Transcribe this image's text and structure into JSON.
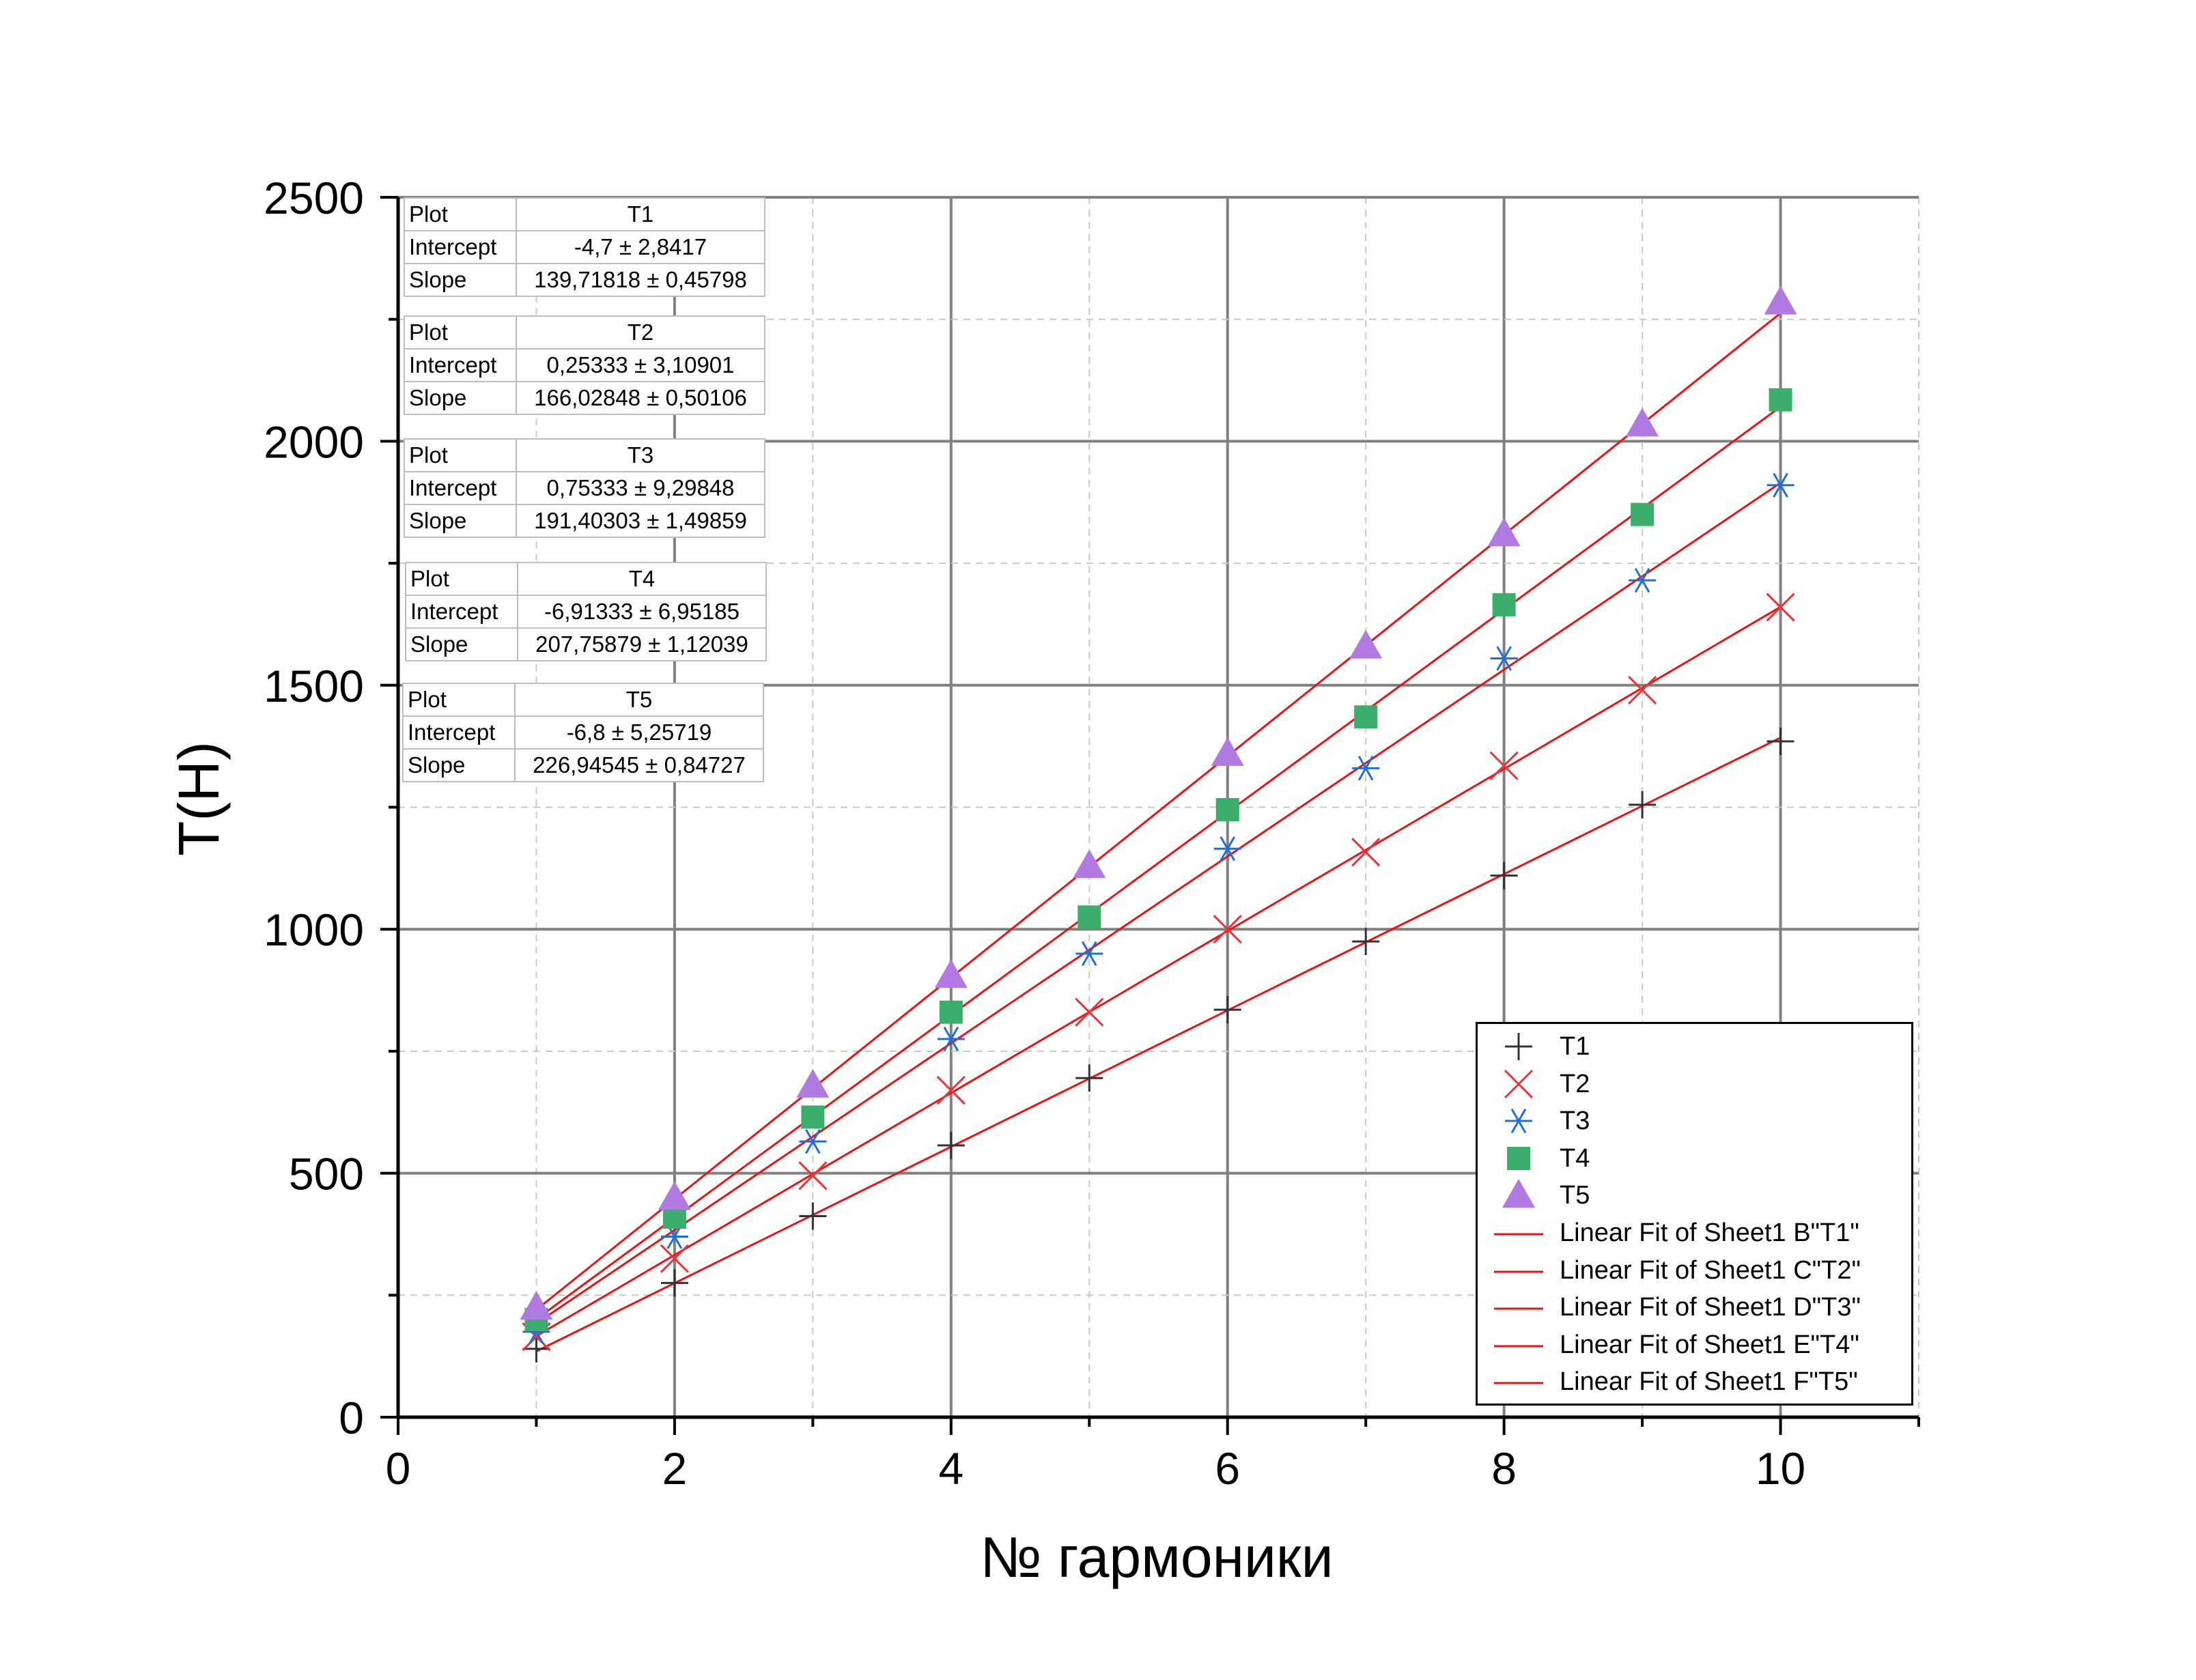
{
  "chart_data": {
    "type": "scatter",
    "xlabel": "№ гармоники",
    "ylabel": "T(H)",
    "xlim": [
      0,
      11
    ],
    "ylim": [
      0,
      2500
    ],
    "x_ticks": [
      "0",
      "2",
      "4",
      "6",
      "8",
      "10"
    ],
    "y_ticks": [
      "0",
      "500",
      "1000",
      "1500",
      "2000",
      "2500"
    ],
    "grid": true,
    "legend_position": "bottom-right",
    "x": [
      1,
      2,
      3,
      4,
      5,
      6,
      7,
      8,
      9,
      10
    ],
    "series": [
      {
        "name": "T1",
        "marker": "plus",
        "color": "#333333",
        "values": [
          140,
          275,
          412,
          557,
          695,
          835,
          975,
          1110,
          1255,
          1385
        ]
      },
      {
        "name": "T2",
        "marker": "x",
        "color": "#e8333a",
        "values": [
          165,
          325,
          495,
          670,
          830,
          1000,
          1158,
          1335,
          1490,
          1660
        ]
      },
      {
        "name": "T3",
        "marker": "asterisk",
        "color": "#1f6fd6",
        "values": [
          175,
          370,
          565,
          775,
          950,
          1165,
          1330,
          1555,
          1715,
          1910
        ]
      },
      {
        "name": "T4",
        "marker": "square",
        "color": "#3aae6a",
        "values": [
          200,
          410,
          615,
          830,
          1025,
          1245,
          1435,
          1665,
          1850,
          2085
        ]
      },
      {
        "name": "T5",
        "marker": "triangle",
        "color": "#b07ae0",
        "values": [
          225,
          450,
          680,
          905,
          1130,
          1360,
          1580,
          1810,
          2035,
          2285
        ]
      }
    ],
    "fits": [
      {
        "name": "Linear Fit of Sheet1 B\"T1\"",
        "intercept": -4.7,
        "slope": 139.71818,
        "color": "#ee1111"
      },
      {
        "name": "Linear Fit of Sheet1 C\"T2\"",
        "intercept": 0.25333,
        "slope": 166.02848,
        "color": "#ee1111"
      },
      {
        "name": "Linear Fit of Sheet1 D\"T3\"",
        "intercept": 0.75333,
        "slope": 191.40303,
        "color": "#ee1111"
      },
      {
        "name": "Linear Fit of Sheet1 E\"T4\"",
        "intercept": -6.91333,
        "slope": 207.75879,
        "color": "#ee1111"
      },
      {
        "name": "Linear Fit of Sheet1 F\"T5\"",
        "intercept": -6.8,
        "slope": 226.94545,
        "color": "#ee1111"
      }
    ],
    "fit_tables": [
      {
        "plot_label": "Plot",
        "plot": "T1",
        "intercept_label": "Intercept",
        "intercept": "-4,7 ± 2,8417",
        "slope_label": "Slope",
        "slope": "139,71818 ± 0,45798"
      },
      {
        "plot_label": "Plot",
        "plot": "T2",
        "intercept_label": "Intercept",
        "intercept": "0,25333 ± 3,10901",
        "slope_label": "Slope",
        "slope": "166,02848 ± 0,50106"
      },
      {
        "plot_label": "Plot",
        "plot": "T3",
        "intercept_label": "Intercept",
        "intercept": "0,75333 ± 9,29848",
        "slope_label": "Slope",
        "slope": "191,40303 ± 1,49859"
      },
      {
        "plot_label": "Plot",
        "plot": "T4",
        "intercept_label": "Intercept",
        "intercept": "-6,91333 ± 6,95185",
        "slope_label": "Slope",
        "slope": "207,75879 ± 1,12039"
      },
      {
        "plot_label": "Plot",
        "plot": "T5",
        "intercept_label": "Intercept",
        "intercept": "-6,8 ± 5,25719",
        "slope_label": "Slope",
        "slope": "226,94545 ± 0,84727"
      }
    ]
  }
}
